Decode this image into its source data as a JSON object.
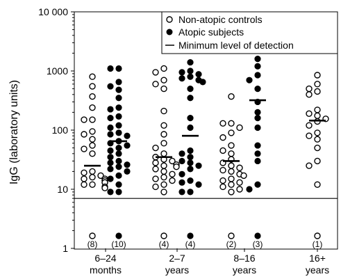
{
  "chart_data": {
    "type": "scatter",
    "title": "",
    "xlabel": "",
    "ylabel": "IgG (laboratory units)",
    "yscale": "log",
    "ylim": [
      1,
      10000
    ],
    "yticks": [
      {
        "value": 1,
        "label": "1"
      },
      {
        "value": 10,
        "label": "10"
      },
      {
        "value": 100,
        "label": "100"
      },
      {
        "value": 1000,
        "label": "1000"
      },
      {
        "value": 10000,
        "label": "10 000"
      }
    ],
    "legend": {
      "placement": "top-right",
      "entries": [
        {
          "marker": "open-circle",
          "label": "Non-atopic controls"
        },
        {
          "marker": "filled-circle",
          "label": "Atopic subjects"
        },
        {
          "marker": "line",
          "label": "Minimum level of detection"
        }
      ]
    },
    "detection_limit": 7,
    "groups": [
      {
        "label_line1": "6–24",
        "label_line2": "months",
        "series": [
          {
            "marker": "open",
            "undetected_label": "(8)",
            "median": 25,
            "values": [
              800,
              550,
              370,
              240,
              150,
              150,
              95,
              85,
              70,
              55,
              48,
              40,
              20,
              19,
              17,
              16,
              15,
              15,
              14,
              14,
              13,
              13,
              12,
              12,
              11,
              10.5
            ]
          },
          {
            "marker": "filled",
            "undetected_label": "(10)",
            "median": 65,
            "values": [
              1100,
              1100,
              650,
              550,
              480,
              350,
              240,
              225,
              170,
              160,
              120,
              110,
              90,
              85,
              80,
              65,
              60,
              55,
              50,
              45,
              40,
              35,
              30,
              28,
              26,
              24,
              22,
              20,
              17,
              15,
              12,
              9,
              9
            ]
          }
        ]
      },
      {
        "label_line1": "2–7",
        "label_line2": "years",
        "series": [
          {
            "marker": "open",
            "undetected_label": "(4)",
            "median": 35,
            "values": [
              1100,
              950,
              700,
              600,
              500,
              210,
              120,
              85,
              60,
              50,
              40,
              35,
              32,
              30,
              28,
              26,
              25,
              24,
              22,
              20,
              18,
              16,
              15,
              14,
              12,
              11,
              9
            ]
          },
          {
            "marker": "filled",
            "undetected_label": "(4)",
            "median": 80,
            "values": [
              1400,
              1000,
              950,
              880,
              800,
              750,
              700,
              650,
              500,
              350,
              160,
              110,
              45,
              40,
              35,
              30,
              28,
              25,
              22,
              18,
              14,
              13,
              12,
              9,
              9
            ]
          }
        ]
      },
      {
        "label_line1": "8–16",
        "label_line2": "years",
        "series": [
          {
            "marker": "open",
            "undetected_label": "(2)",
            "median": 30,
            "values": [
              370,
              130,
              130,
              110,
              90,
              75,
              55,
              45,
              40,
              32,
              28,
              25,
              23,
              21,
              20,
              18,
              17,
              15,
              14,
              13,
              12,
              11,
              10,
              9
            ]
          },
          {
            "marker": "filled",
            "undetected_label": "(3)",
            "median": 320,
            "values": [
              1600,
              1200,
              850,
              700,
              500,
              300,
              200,
              160,
              110,
              55,
              40,
              30,
              12,
              10
            ]
          }
        ]
      },
      {
        "label_line1": "16+",
        "label_line2": "years",
        "series": [
          {
            "marker": "open",
            "undetected_label": "(1)",
            "median": 145,
            "values": [
              850,
              600,
              500,
              450,
              400,
              220,
              190,
              175,
              155,
              140,
              120,
              90,
              80,
              70,
              50,
              30,
              25,
              12
            ]
          }
        ]
      }
    ]
  }
}
